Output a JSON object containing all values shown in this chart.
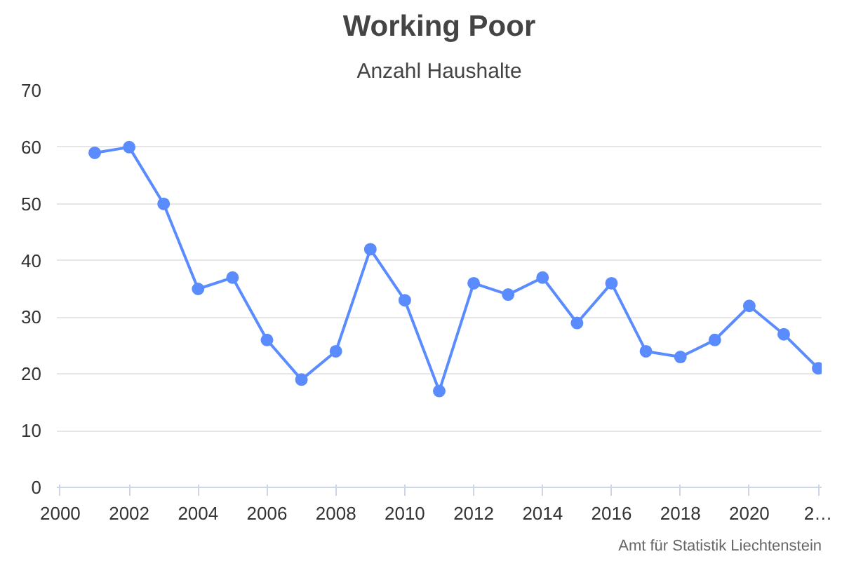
{
  "chart_data": {
    "type": "line",
    "title": "Working Poor",
    "subtitle": "Anzahl Haushalte",
    "x": [
      2001,
      2002,
      2003,
      2004,
      2005,
      2006,
      2007,
      2008,
      2009,
      2010,
      2011,
      2012,
      2013,
      2014,
      2015,
      2016,
      2017,
      2018,
      2019,
      2020,
      2021,
      2022
    ],
    "series": [
      {
        "color": "#5b8cff",
        "values": [
          59,
          60,
          50,
          35,
          37,
          26,
          19,
          24,
          42,
          33,
          17,
          36,
          34,
          37,
          29,
          36,
          24,
          23,
          26,
          32,
          27,
          21
        ]
      }
    ],
    "xlim": [
      1999.9,
      2022.1
    ],
    "xticks": [
      2000,
      2002,
      2004,
      2006,
      2008,
      2010,
      2012,
      2014,
      2016,
      2018,
      2020,
      {
        "value": 2022,
        "label": "2…"
      }
    ],
    "ylim": [
      0,
      70
    ],
    "yticks": [
      0,
      10,
      20,
      30,
      40,
      50,
      60,
      70
    ],
    "grid": "y",
    "marker": "circle",
    "line_style": "solid",
    "annotations": [
      "Amt für Statistik Liechtenstein"
    ]
  }
}
